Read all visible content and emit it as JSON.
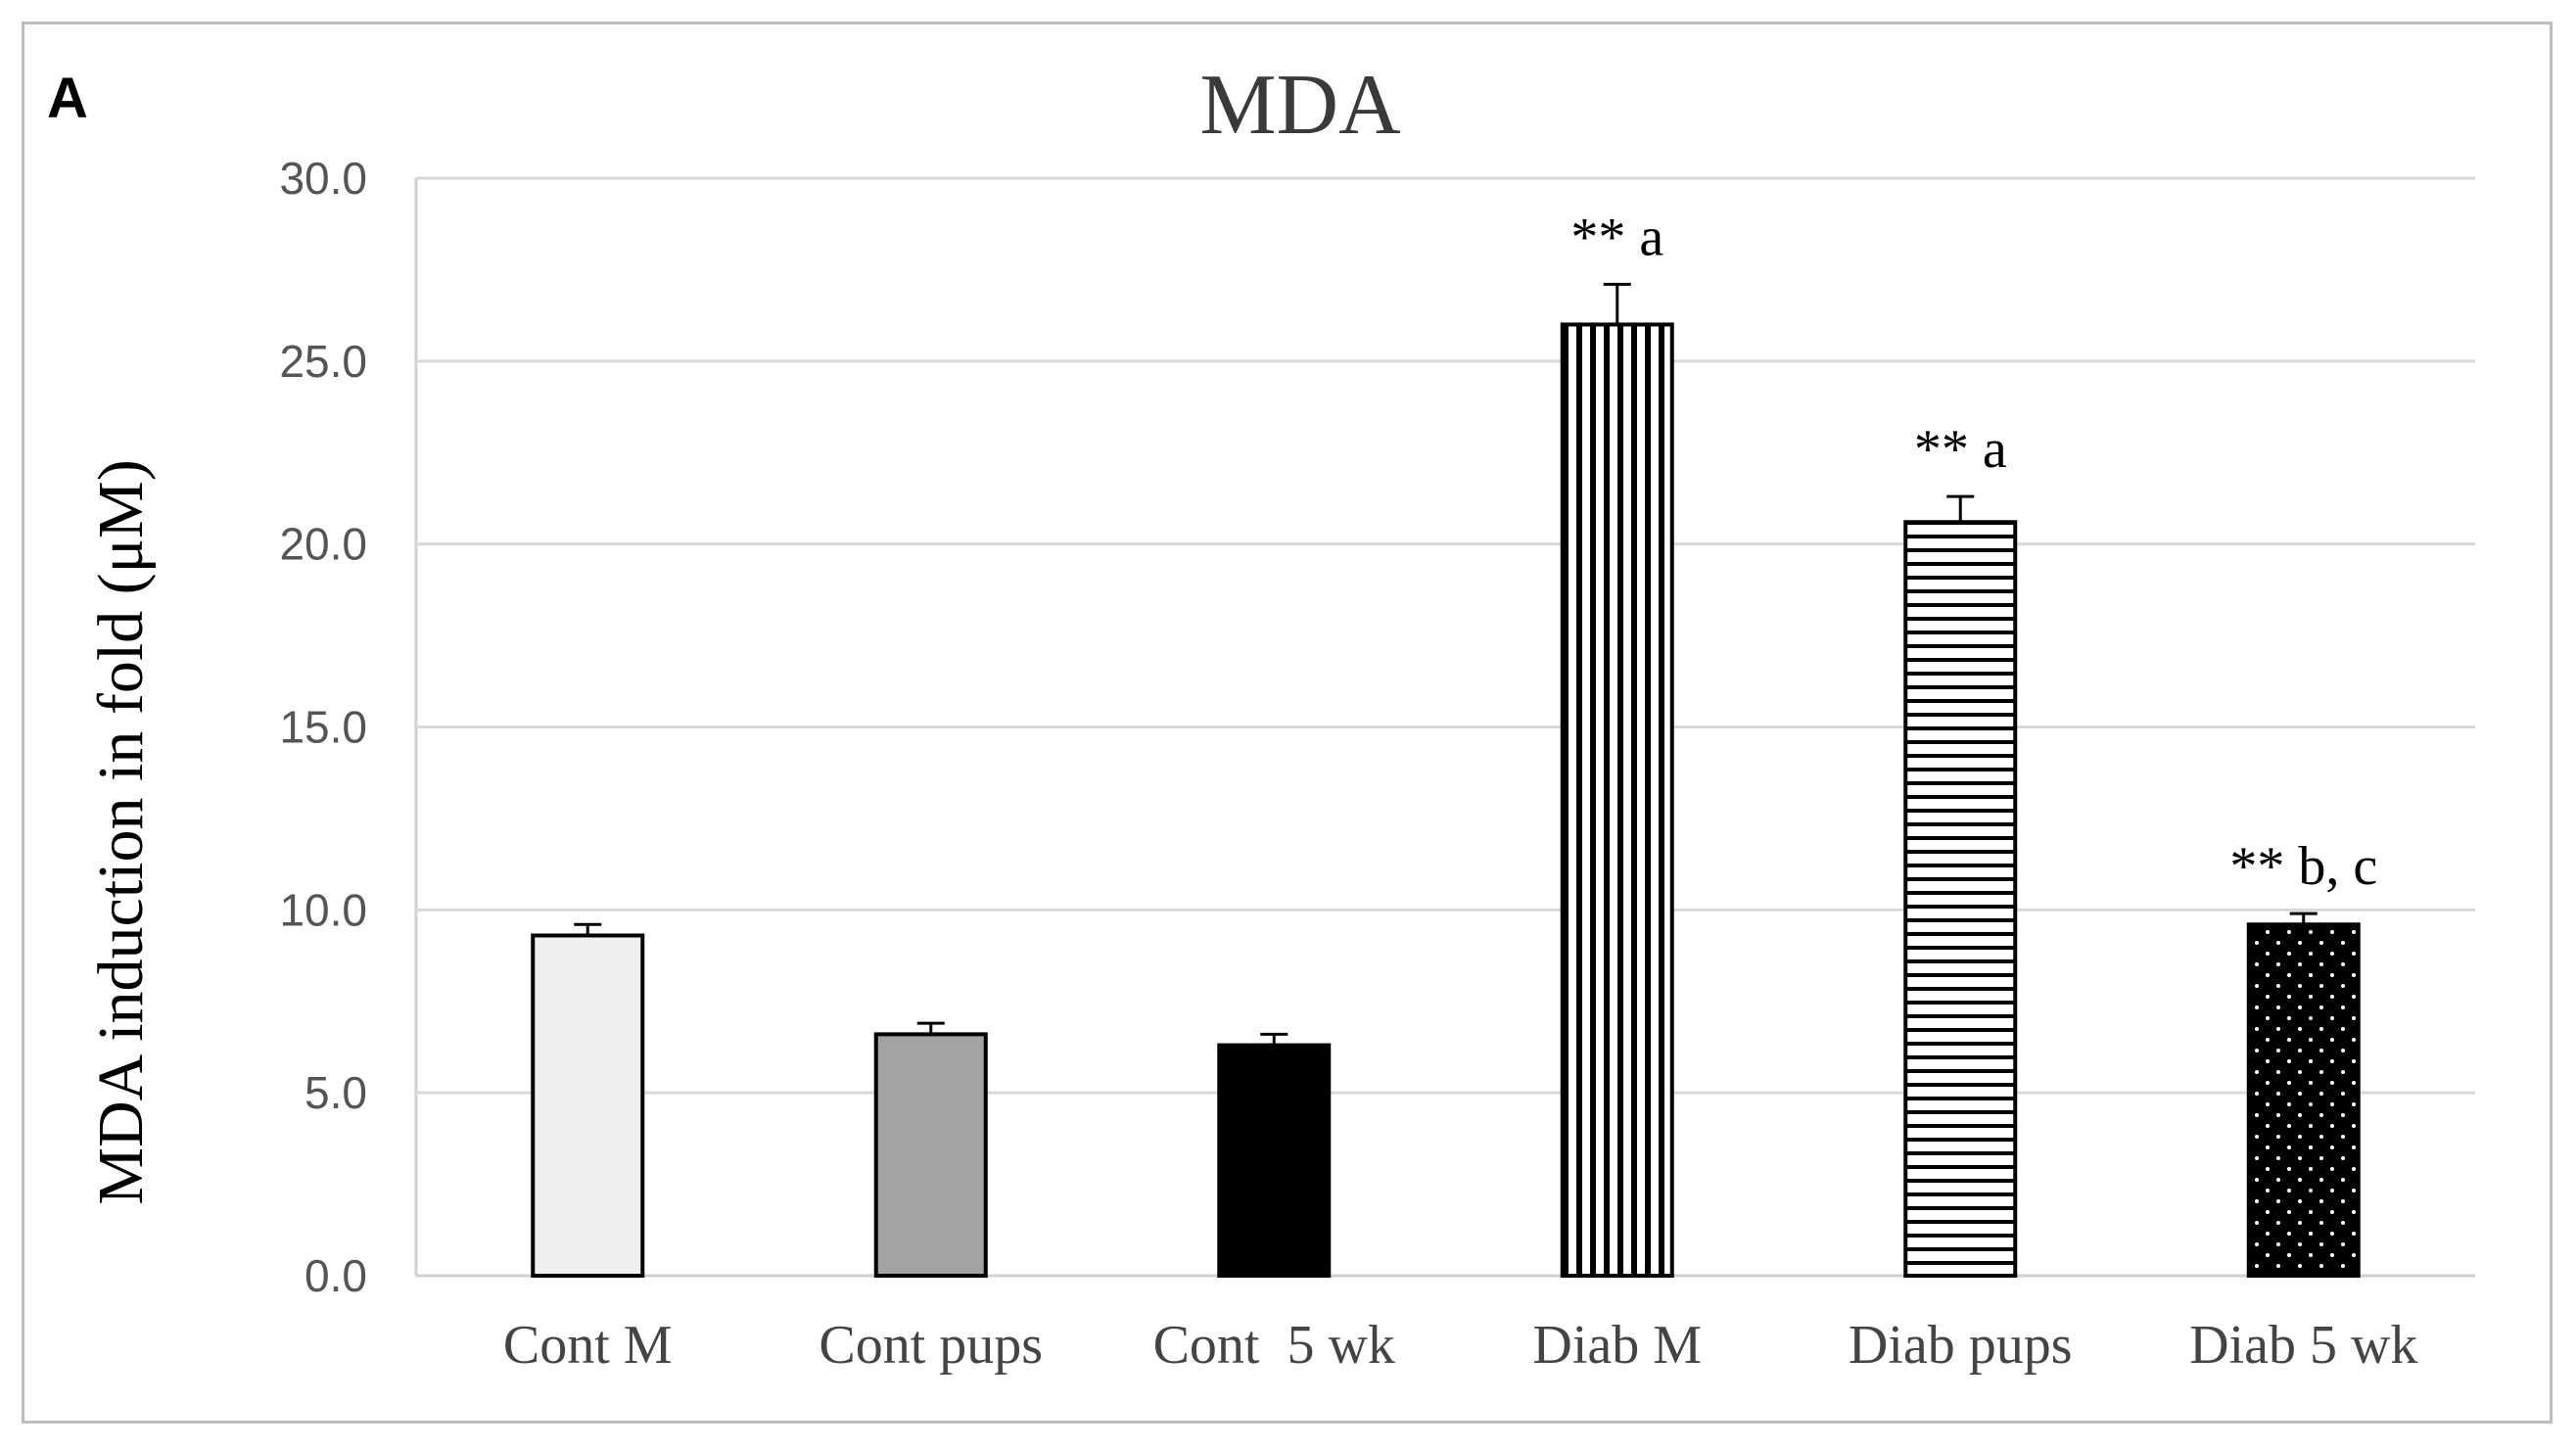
{
  "panel_label": "A",
  "chart_data": {
    "type": "bar",
    "title": "MDA",
    "xlabel": "",
    "ylabel": "MDA induction in fold (μM)",
    "ylim": [
      0,
      30
    ],
    "yticks": [
      "0.0",
      "5.0",
      "10.0",
      "15.0",
      "20.0",
      "25.0",
      "30.0"
    ],
    "grid": true,
    "categories": [
      "Cont M",
      "Cont pups",
      "Cont  5 wk",
      "Diab M",
      "Diab pups",
      "Diab 5 wk"
    ],
    "values": [
      9.3,
      6.6,
      6.3,
      26.0,
      20.6,
      9.6
    ],
    "errors": [
      0.3,
      0.3,
      0.3,
      1.1,
      0.7,
      0.3
    ],
    "annotations": [
      "",
      "",
      "",
      "** a",
      "** a",
      "** b, c"
    ],
    "bar_styles": [
      {
        "fill": "#f0f0f0",
        "pattern": "solid"
      },
      {
        "fill": "#a3a3a3",
        "pattern": "solid"
      },
      {
        "fill": "#000000",
        "pattern": "solid"
      },
      {
        "fill": "#ffffff",
        "pattern": "vertical-stripes"
      },
      {
        "fill": "#ffffff",
        "pattern": "horizontal-stripes"
      },
      {
        "fill": "#000000",
        "pattern": "dots"
      }
    ]
  }
}
